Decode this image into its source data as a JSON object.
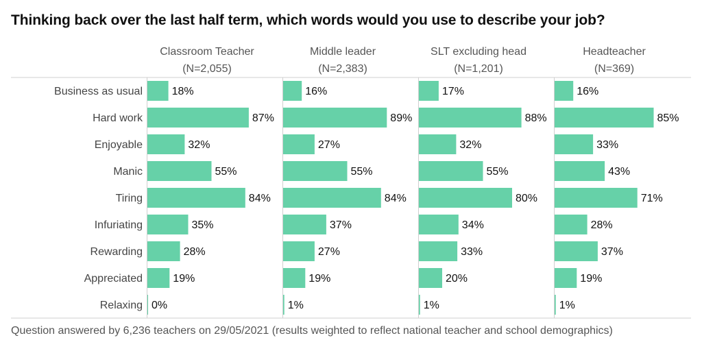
{
  "chart_data": {
    "type": "bar",
    "orientation": "horizontal",
    "title": "Thinking back over the last half term, which words would you use to describe your job?",
    "footnote": "Question answered by 6,236 teachers on 29/05/2021 (results weighted to reflect national teacher and school demographics)",
    "categories": [
      "Business as usual",
      "Hard work",
      "Enjoyable",
      "Manic",
      "Tiring",
      "Infuriating",
      "Rewarding",
      "Appreciated",
      "Relaxing"
    ],
    "value_suffix": "%",
    "xlim": [
      0,
      100
    ],
    "bar_color": "#66d1a8",
    "series": [
      {
        "name": "Classroom Teacher",
        "n_label": "(N=2,055)",
        "values": [
          18,
          87,
          32,
          55,
          84,
          35,
          28,
          19,
          0
        ]
      },
      {
        "name": "Middle leader",
        "n_label": "(N=2,383)",
        "values": [
          16,
          89,
          27,
          55,
          84,
          37,
          27,
          19,
          1
        ]
      },
      {
        "name": "SLT excluding head",
        "n_label": "(N=1,201)",
        "values": [
          17,
          88,
          32,
          55,
          80,
          34,
          33,
          20,
          1
        ]
      },
      {
        "name": "Headteacher",
        "n_label": "(N=369)",
        "values": [
          16,
          85,
          33,
          43,
          71,
          28,
          37,
          19,
          1
        ]
      }
    ]
  }
}
